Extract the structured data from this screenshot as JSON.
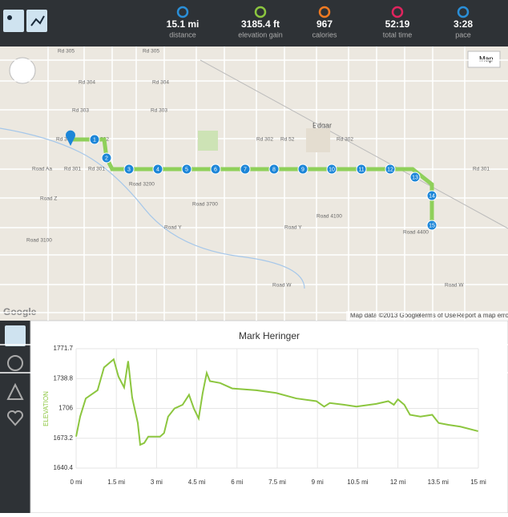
{
  "header": {
    "stats": [
      {
        "value": "15.1 mi",
        "label": "distance"
      },
      {
        "value": "3185.4 ft",
        "label": "elevation gain"
      },
      {
        "value": "967",
        "label": "calories"
      },
      {
        "value": "52:19",
        "label": "total time"
      },
      {
        "value": "3:28",
        "label": "pace"
      }
    ]
  },
  "map": {
    "button": "Map",
    "place": "Edgar",
    "logo": "Google",
    "attribution": "Map data ©2013 Google",
    "terms": "Terms of Use",
    "report": "Report a map error",
    "markers": [
      "1",
      "2",
      "3",
      "4",
      "5",
      "6",
      "7",
      "8",
      "9",
      "10",
      "11",
      "12",
      "13",
      "14",
      "15"
    ],
    "road_labels": [
      "Rd 305",
      "Rd 305",
      "Rd 304",
      "Rd 304",
      "Rd 303",
      "Rd 303",
      "Rd 302",
      "Rd 302",
      "Rd 52",
      "Rd 302",
      "Rd 301",
      "Rd 301",
      "Road Aa",
      "Road Z",
      "Road Y",
      "Road Y",
      "Road W",
      "Road W",
      "Road 3100",
      "Road 3200",
      "Road 3700",
      "Road 4100",
      "Road 4400",
      "Rd 300",
      "Rd 301"
    ]
  },
  "chart_data": {
    "type": "line",
    "title": "Mark Heringer",
    "y_label": "ELEVATION",
    "series": [
      {
        "name": "Mark Heringer",
        "color": "#8cc63f",
        "x": [
          0,
          0.15,
          0.36,
          0.8,
          1.04,
          1.4,
          1.58,
          1.79,
          1.94,
          2.09,
          2.3,
          2.39,
          2.54,
          2.69,
          3.13,
          3.28,
          3.43,
          3.67,
          3.97,
          4.21,
          4.39,
          4.57,
          4.72,
          4.87,
          4.99,
          5.37,
          5.82,
          6.72,
          7.46,
          8.21,
          8.96,
          9.25,
          9.46,
          10.0,
          10.45,
          11.19,
          11.64,
          11.85,
          12.0,
          12.24,
          12.45,
          12.84,
          13.28,
          13.52,
          13.88,
          14.33,
          14.99
        ],
        "values": [
          1675,
          1697,
          1717,
          1726,
          1751,
          1760,
          1741,
          1729,
          1758,
          1718,
          1690,
          1666,
          1668,
          1675,
          1675,
          1679,
          1697,
          1706,
          1710,
          1721,
          1706,
          1695,
          1723,
          1745,
          1736,
          1734,
          1728,
          1726,
          1723,
          1717,
          1714,
          1708,
          1712,
          1710,
          1708,
          1711,
          1714,
          1710,
          1716,
          1710,
          1699,
          1697,
          1699,
          1690,
          1688,
          1686,
          1681
        ]
      }
    ],
    "xlim": [
      0,
      15
    ],
    "ylim": [
      1640.4,
      1771.7
    ],
    "xticks": [
      {
        "value": 0,
        "label": "0 mi"
      },
      {
        "value": 1.5,
        "label": "1.5 mi"
      },
      {
        "value": 3,
        "label": "3 mi"
      },
      {
        "value": 4.5,
        "label": "4.5 mi"
      },
      {
        "value": 6,
        "label": "6 mi"
      },
      {
        "value": 7.5,
        "label": "7.5 mi"
      },
      {
        "value": 9,
        "label": "9 mi"
      },
      {
        "value": 10.5,
        "label": "10.5 mi"
      },
      {
        "value": 12,
        "label": "12 mi"
      },
      {
        "value": 13.5,
        "label": "13.5 mi"
      },
      {
        "value": 15,
        "label": "15 mi"
      }
    ],
    "yticks": [
      1640.4,
      1673.2,
      1706,
      1738.8,
      1771.7
    ],
    "grid": true
  }
}
